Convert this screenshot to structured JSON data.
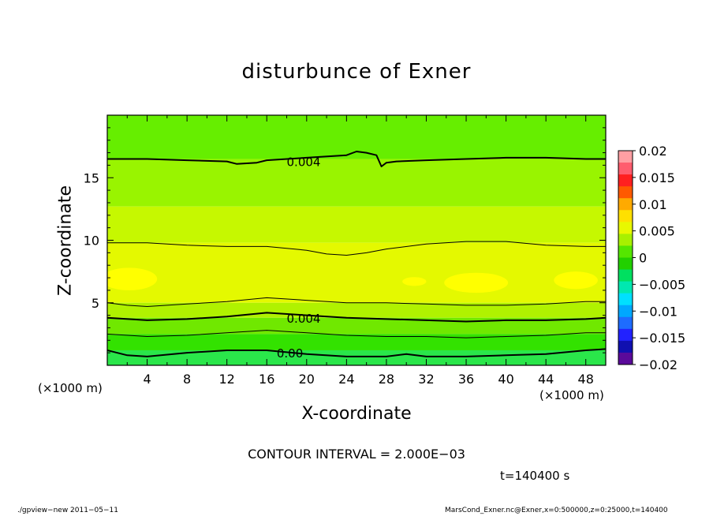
{
  "chart_data": {
    "type": "heatmap",
    "title": "disturbunce of Exner",
    "xlabel": "X-coordinate",
    "ylabel": "Z-coordinate",
    "x_unit_left": "(×1000 m)",
    "x_unit_right": "(×1000 m)",
    "xlim": [
      0,
      50
    ],
    "ylim": [
      0,
      20
    ],
    "x_ticks": [
      4,
      8,
      12,
      16,
      20,
      24,
      28,
      32,
      36,
      40,
      44,
      48
    ],
    "y_ticks": [
      5,
      10,
      15
    ],
    "contour_labels": [
      {
        "text": "0.004",
        "x": 18,
        "z": 16.3
      },
      {
        "text": "0.004",
        "x": 18,
        "z": 3.8
      },
      {
        "text": "0.00",
        "x": 17,
        "z": 1.0
      }
    ],
    "contour_lines": [
      {
        "level_index": 1,
        "width": 2,
        "points": [
          [
            0,
            16.5
          ],
          [
            4,
            16.5
          ],
          [
            8,
            16.4
          ],
          [
            12,
            16.3
          ],
          [
            13,
            16.1
          ],
          [
            15,
            16.2
          ],
          [
            16,
            16.4
          ],
          [
            20,
            16.6
          ],
          [
            24,
            16.8
          ],
          [
            25,
            17.1
          ],
          [
            26,
            17.0
          ],
          [
            27,
            16.8
          ],
          [
            27.5,
            15.9
          ],
          [
            28,
            16.2
          ],
          [
            29,
            16.3
          ],
          [
            32,
            16.4
          ],
          [
            36,
            16.5
          ],
          [
            40,
            16.6
          ],
          [
            44,
            16.6
          ],
          [
            48,
            16.5
          ],
          [
            50,
            16.5
          ]
        ]
      },
      {
        "level_index": 2,
        "width": 1,
        "points": [
          [
            0,
            9.8
          ],
          [
            4,
            9.8
          ],
          [
            8,
            9.6
          ],
          [
            12,
            9.5
          ],
          [
            16,
            9.5
          ],
          [
            20,
            9.2
          ],
          [
            22,
            8.9
          ],
          [
            24,
            8.8
          ],
          [
            26,
            9.0
          ],
          [
            28,
            9.3
          ],
          [
            32,
            9.7
          ],
          [
            36,
            9.9
          ],
          [
            40,
            9.9
          ],
          [
            44,
            9.6
          ],
          [
            48,
            9.5
          ],
          [
            50,
            9.5
          ]
        ]
      },
      {
        "level_index": 3,
        "width": 1,
        "points": [
          [
            0,
            5.0
          ],
          [
            2,
            4.8
          ],
          [
            4,
            4.7
          ],
          [
            8,
            4.9
          ],
          [
            12,
            5.1
          ],
          [
            16,
            5.4
          ],
          [
            20,
            5.2
          ],
          [
            24,
            5.0
          ],
          [
            28,
            5.0
          ],
          [
            32,
            4.9
          ],
          [
            36,
            4.8
          ],
          [
            40,
            4.8
          ],
          [
            44,
            4.9
          ],
          [
            48,
            5.1
          ],
          [
            50,
            5.1
          ]
        ]
      },
      {
        "level_index": 4,
        "width": 2,
        "points": [
          [
            0,
            3.8
          ],
          [
            4,
            3.6
          ],
          [
            8,
            3.7
          ],
          [
            12,
            3.9
          ],
          [
            16,
            4.2
          ],
          [
            20,
            4.0
          ],
          [
            24,
            3.8
          ],
          [
            28,
            3.7
          ],
          [
            32,
            3.6
          ],
          [
            36,
            3.5
          ],
          [
            40,
            3.6
          ],
          [
            44,
            3.6
          ],
          [
            48,
            3.7
          ],
          [
            50,
            3.8
          ]
        ]
      },
      {
        "level_index": 5,
        "width": 1,
        "points": [
          [
            0,
            2.5
          ],
          [
            4,
            2.3
          ],
          [
            8,
            2.4
          ],
          [
            12,
            2.6
          ],
          [
            16,
            2.8
          ],
          [
            20,
            2.6
          ],
          [
            24,
            2.4
          ],
          [
            28,
            2.3
          ],
          [
            32,
            2.3
          ],
          [
            36,
            2.2
          ],
          [
            40,
            2.3
          ],
          [
            44,
            2.4
          ],
          [
            48,
            2.6
          ],
          [
            50,
            2.6
          ]
        ]
      },
      {
        "level_index": 6,
        "width": 2,
        "points": [
          [
            0,
            1.2
          ],
          [
            2,
            0.8
          ],
          [
            4,
            0.7
          ],
          [
            8,
            1.0
          ],
          [
            12,
            1.2
          ],
          [
            16,
            1.2
          ],
          [
            20,
            0.9
          ],
          [
            24,
            0.7
          ],
          [
            28,
            0.7
          ],
          [
            30,
            0.9
          ],
          [
            32,
            0.7
          ],
          [
            36,
            0.7
          ],
          [
            40,
            0.8
          ],
          [
            44,
            0.9
          ],
          [
            48,
            1.2
          ],
          [
            50,
            1.3
          ]
        ]
      }
    ],
    "field_bands": [
      {
        "z": [
          16.5,
          20
        ],
        "color": "#66ee00"
      },
      {
        "z": [
          12.7,
          16.5
        ],
        "color": "#99f400"
      },
      {
        "z": [
          9.8,
          12.7
        ],
        "color": "#c6f800"
      },
      {
        "z": [
          5.0,
          9.8
        ],
        "color": "#e4f900"
      },
      {
        "z": [
          3.8,
          5.0
        ],
        "color": "#b0f200"
      },
      {
        "z": [
          2.5,
          3.8
        ],
        "color": "#70e800"
      },
      {
        "z": [
          1.2,
          2.5
        ],
        "color": "#33e200"
      },
      {
        "z": [
          0,
          1.2
        ],
        "color": "#2ae64a"
      }
    ],
    "highlight_blobs": [
      {
        "x": 2.2,
        "z": 6.9,
        "rx": 2.8,
        "rz": 0.9,
        "color": "#ffff00"
      },
      {
        "x": 30.8,
        "z": 6.7,
        "rx": 1.2,
        "rz": 0.35,
        "color": "#ffff00"
      },
      {
        "x": 37,
        "z": 6.6,
        "rx": 3.2,
        "rz": 0.8,
        "color": "#ffff00"
      },
      {
        "x": 47,
        "z": 6.8,
        "rx": 2.2,
        "rz": 0.7,
        "color": "#ffff00"
      }
    ],
    "colorbar": {
      "vmin": -0.02,
      "vmax": 0.02,
      "tick_values": [
        0.02,
        0.015,
        0.01,
        0.005,
        0,
        -0.005,
        -0.01,
        -0.015,
        -0.02
      ],
      "tick_labels": [
        "0.02",
        "0.015",
        "0.01",
        "0.005",
        "0",
        "−0.005",
        "−0.01",
        "−0.015",
        "−0.02"
      ],
      "colors": [
        "#ff9fa3",
        "#ff5d6e",
        "#ff2020",
        "#ff5a00",
        "#ffaa00",
        "#ffe000",
        "#e8f800",
        "#a8f000",
        "#55e600",
        "#22d000",
        "#00e060",
        "#00e8b0",
        "#00e0ff",
        "#00a8ff",
        "#1e6cff",
        "#2222ff",
        "#1010b0",
        "#5a0a9a"
      ]
    },
    "contour_interval_text": "CONTOUR INTERVAL = 2.000E−03",
    "time_text": "t=140400 s",
    "footer_left": "./gpview−new   2011−05−11",
    "footer_right": "MarsCond_Exner.nc@Exner,x=0:500000,z=0:25000,t=140400"
  }
}
